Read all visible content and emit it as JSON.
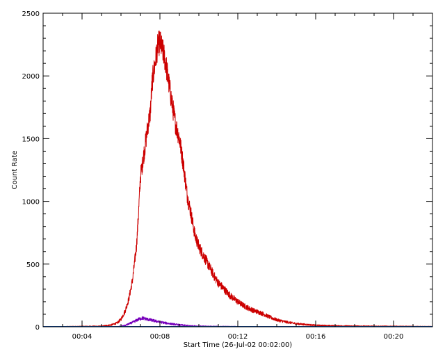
{
  "chart_data": {
    "type": "line",
    "title": "",
    "xlabel": "Start Time (26-Jul-02 00:02:00)",
    "ylabel": "Count Rate",
    "x_unit": "minutes after 00:00 on 26-Jul-02",
    "xlim": [
      2.0,
      22.0
    ],
    "ylim": [
      0,
      2500
    ],
    "x_ticks": [
      {
        "value": 4,
        "label": "00:04"
      },
      {
        "value": 8,
        "label": "00:08"
      },
      {
        "value": 12,
        "label": "00:12"
      },
      {
        "value": 16,
        "label": "00:16"
      },
      {
        "value": 20,
        "label": "00:20"
      }
    ],
    "y_ticks": [
      {
        "value": 0,
        "label": "0"
      },
      {
        "value": 500,
        "label": "500"
      },
      {
        "value": 1000,
        "label": "1000"
      },
      {
        "value": 1500,
        "label": "1500"
      },
      {
        "value": 2000,
        "label": "2000"
      },
      {
        "value": 2500,
        "label": "2500"
      }
    ],
    "grid": false,
    "legend": "none",
    "series": [
      {
        "color": "#cc0000",
        "noisy": true,
        "x": [
          2.0,
          5.0,
          5.5,
          5.8,
          6.0,
          6.2,
          6.4,
          6.6,
          6.8,
          6.9,
          7.0,
          7.2,
          7.4,
          7.5,
          7.6,
          7.7,
          7.8,
          7.9,
          8.0,
          8.1,
          8.2,
          8.3,
          8.4,
          8.6,
          8.8,
          9.0,
          9.2,
          9.4,
          9.6,
          9.8,
          10.0,
          10.2,
          10.4,
          10.6,
          10.8,
          11.0,
          11.3,
          11.6,
          12.0,
          12.4,
          12.8,
          13.2,
          13.6,
          14.0,
          14.5,
          15.0,
          15.5,
          16.0,
          17.0,
          18.0,
          19.0,
          20.0,
          21.0,
          22.0
        ],
        "y": [
          0,
          5,
          15,
          30,
          60,
          120,
          220,
          380,
          650,
          900,
          1200,
          1400,
          1620,
          1700,
          1950,
          2050,
          2150,
          2250,
          2270,
          2220,
          2170,
          2100,
          2000,
          1800,
          1620,
          1500,
          1300,
          1050,
          900,
          730,
          640,
          580,
          520,
          460,
          400,
          350,
          300,
          250,
          200,
          160,
          130,
          110,
          80,
          55,
          38,
          25,
          18,
          12,
          8,
          6,
          5,
          4,
          3,
          2
        ]
      },
      {
        "color": "#7700bb",
        "noisy": true,
        "x": [
          2.0,
          5.8,
          6.2,
          6.6,
          6.9,
          7.1,
          7.3,
          7.5,
          7.8,
          8.1,
          8.5,
          9.0,
          9.5,
          10.0,
          11.0,
          12.0,
          14.0,
          22.0
        ],
        "y": [
          0,
          0,
          10,
          35,
          60,
          70,
          62,
          55,
          45,
          35,
          25,
          15,
          9,
          5,
          3,
          2,
          1,
          1
        ]
      },
      {
        "color": "#1133cc",
        "noisy": false,
        "x": [
          2.0,
          22.0
        ],
        "y": [
          3,
          3
        ]
      },
      {
        "color": "#00aa55",
        "noisy": false,
        "x": [
          2.0,
          22.0
        ],
        "y": [
          1,
          1
        ]
      }
    ]
  }
}
